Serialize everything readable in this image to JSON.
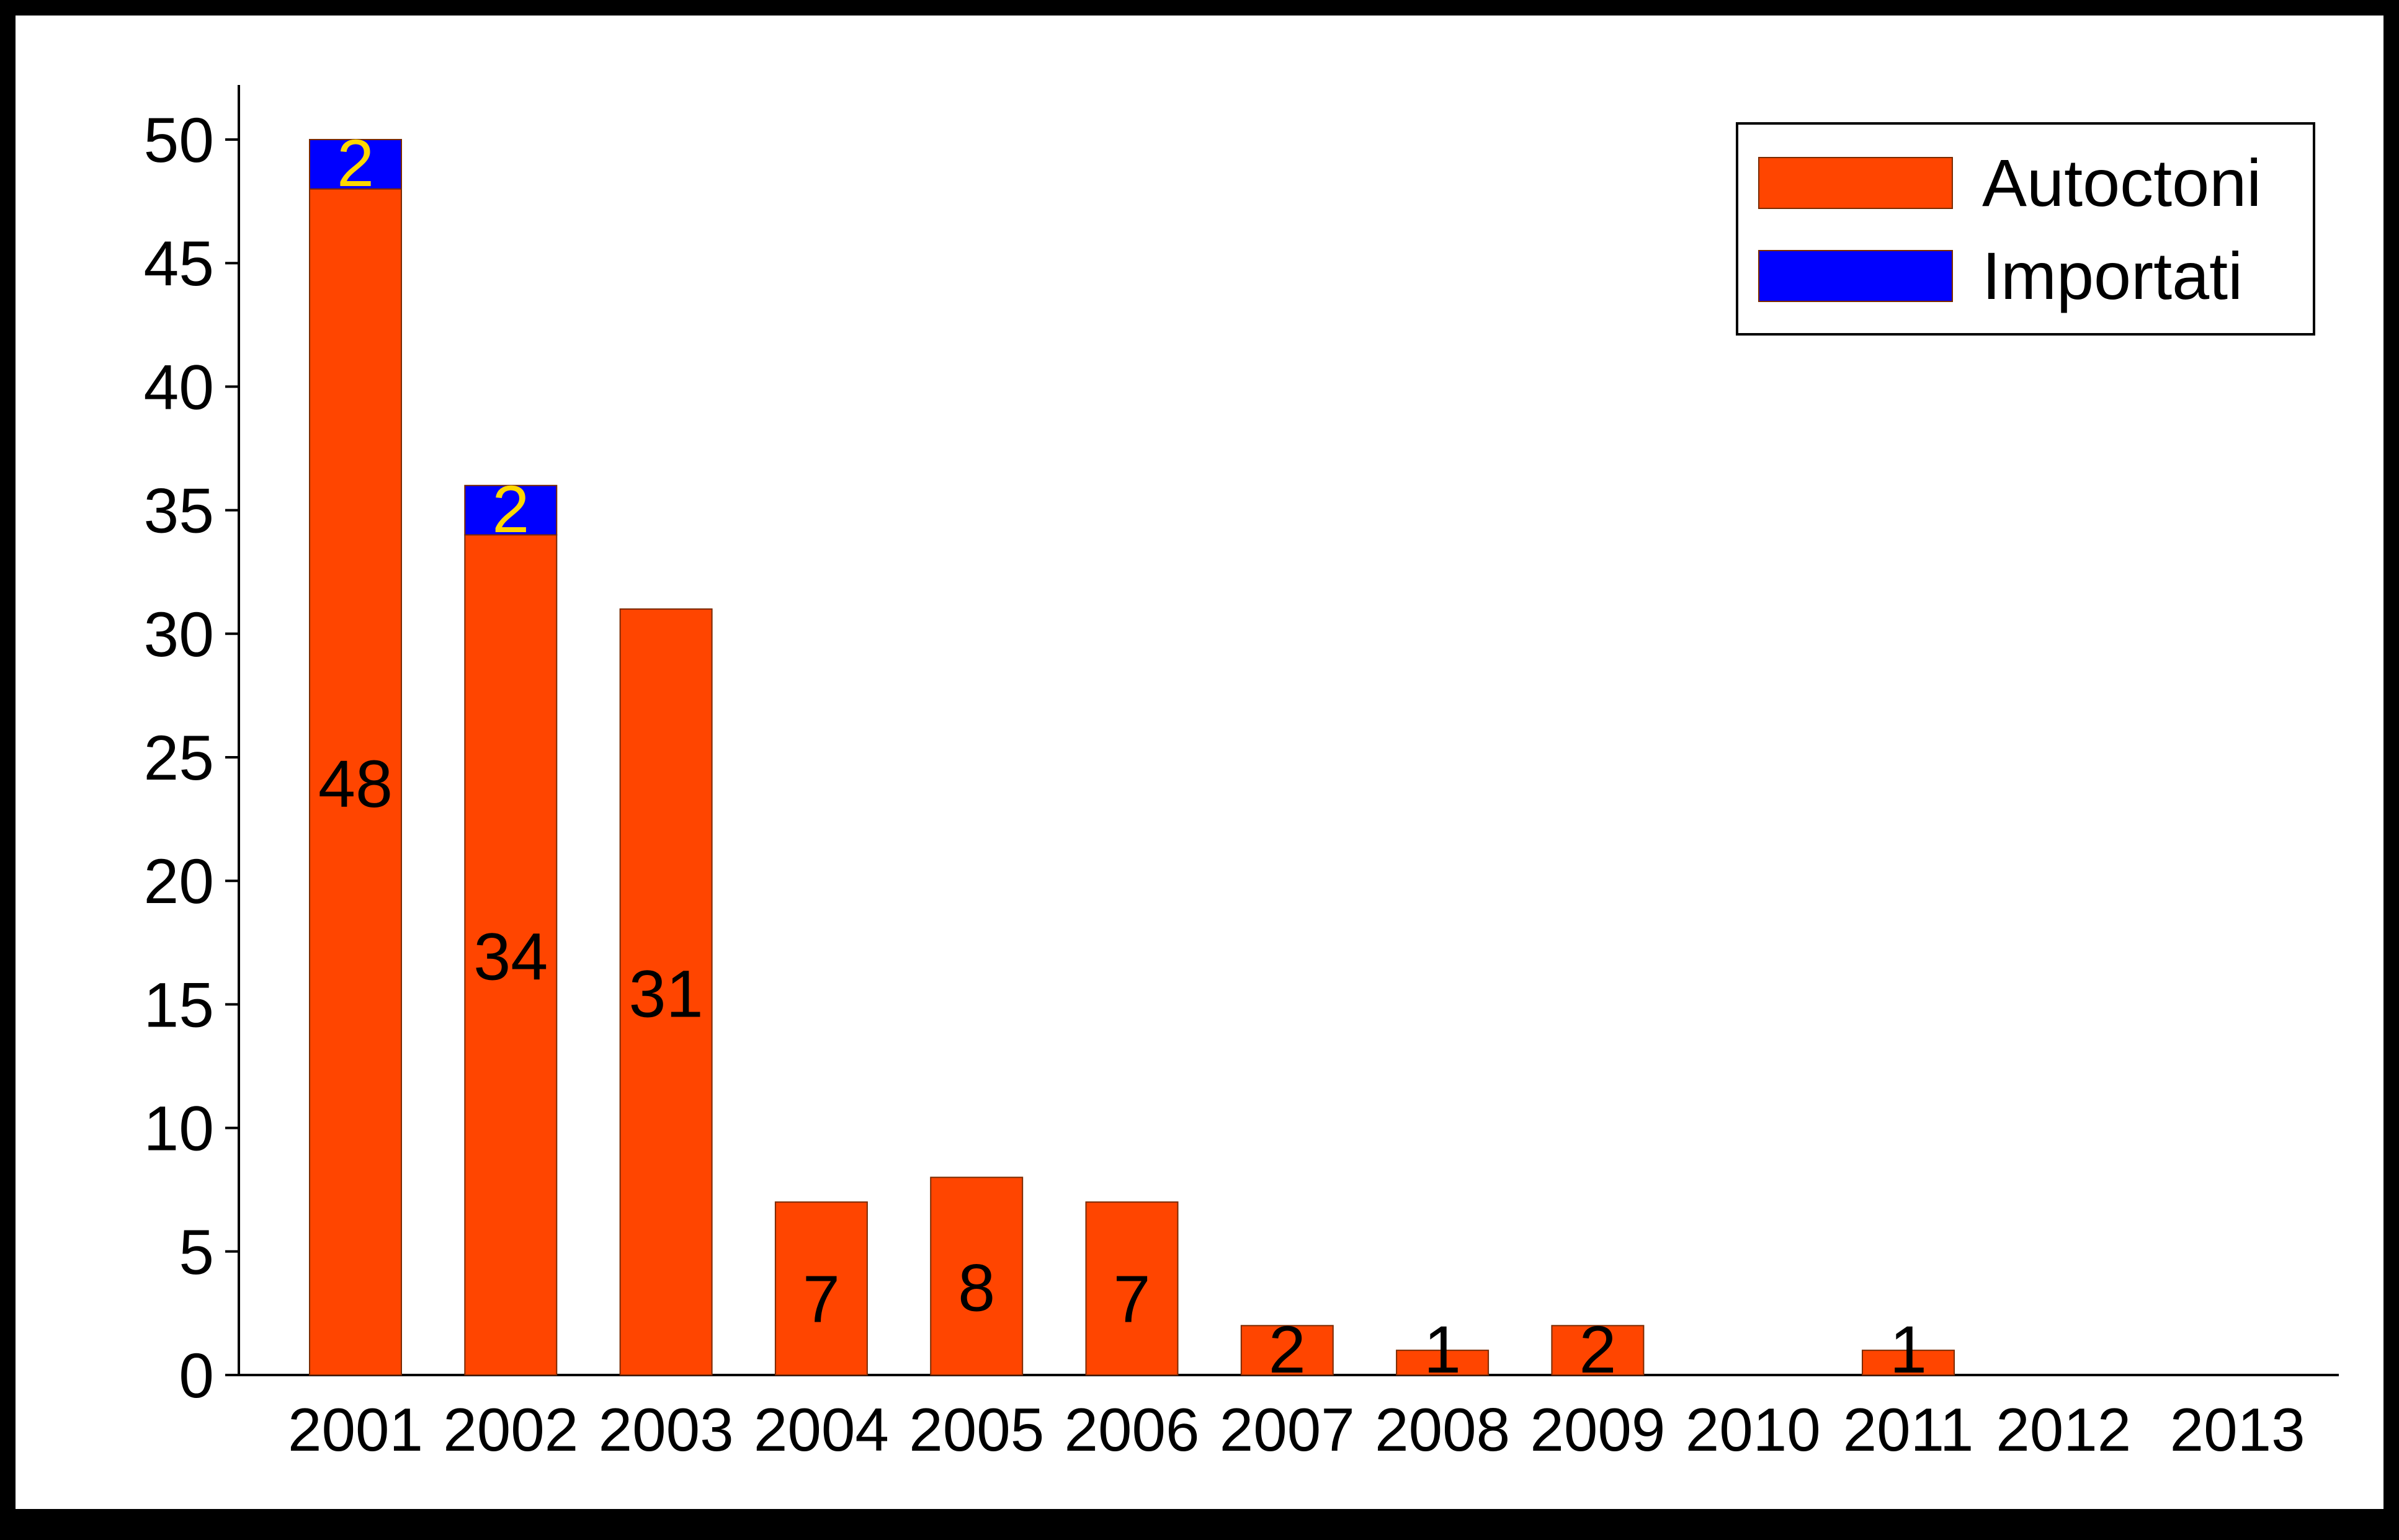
{
  "chart_data": {
    "type": "bar",
    "stacked": true,
    "categories": [
      "2001",
      "2002",
      "2003",
      "2004",
      "2005",
      "2006",
      "2007",
      "2008",
      "2009",
      "2010",
      "2011",
      "2012",
      "2013"
    ],
    "series": [
      {
        "name": "Autoctoni",
        "color": "#ff4500",
        "values": [
          48,
          34,
          31,
          7,
          8,
          7,
          2,
          1,
          2,
          0,
          1,
          0,
          0
        ],
        "labels": [
          "48",
          "34",
          "31",
          "7",
          "8",
          "7",
          "2",
          "1",
          "2",
          "",
          "1",
          "",
          ""
        ],
        "label_color": "#000000"
      },
      {
        "name": "Importati",
        "color": "#0000ff",
        "values": [
          2,
          2,
          0,
          0,
          0,
          0,
          0,
          0,
          0,
          0,
          0,
          0,
          0
        ],
        "labels": [
          "2",
          "2",
          "",
          "",
          "",
          "",
          "",
          "",
          "",
          "",
          "",
          "",
          ""
        ],
        "label_color": "#ffd700"
      }
    ],
    "yticks": [
      0,
      5,
      10,
      15,
      20,
      25,
      30,
      35,
      40,
      45,
      50
    ],
    "ylim": [
      0,
      52
    ],
    "title": "",
    "xlabel": "",
    "ylabel": "",
    "grid": false,
    "legend_position": "top-right"
  }
}
